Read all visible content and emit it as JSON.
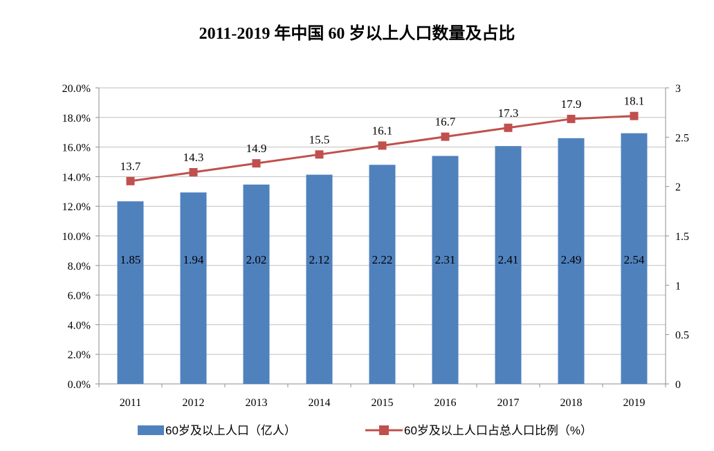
{
  "chart_data": {
    "type": "bar",
    "title": "2011-2019 年中国 60 岁以上人口数量及占比",
    "categories": [
      "2011",
      "2012",
      "2013",
      "2014",
      "2015",
      "2016",
      "2017",
      "2018",
      "2019"
    ],
    "series": [
      {
        "name": "60岁及以上人口（亿人）",
        "type": "bar",
        "axis": "right",
        "color": "#4f81bd",
        "values": [
          1.85,
          1.94,
          2.02,
          2.12,
          2.22,
          2.31,
          2.41,
          2.49,
          2.54
        ],
        "labels": [
          "1.85",
          "1.94",
          "2.02",
          "2.12",
          "2.22",
          "2.31",
          "2.41",
          "2.49",
          "2.54"
        ]
      },
      {
        "name": "60岁及以上人口占总人口比例（%）",
        "type": "line",
        "axis": "left",
        "color": "#c0504d",
        "values": [
          13.7,
          14.3,
          14.9,
          15.5,
          16.1,
          16.7,
          17.3,
          17.9,
          18.1
        ],
        "labels": [
          "13.7",
          "14.3",
          "14.9",
          "15.5",
          "16.1",
          "16.7",
          "17.3",
          "17.9",
          "18.1"
        ]
      }
    ],
    "y_left": {
      "range": [
        0,
        20
      ],
      "ticks": [
        0,
        2,
        4,
        6,
        8,
        10,
        12,
        14,
        16,
        18,
        20
      ],
      "tick_labels": [
        "0.0%",
        "2.0%",
        "4.0%",
        "6.0%",
        "8.0%",
        "10.0%",
        "12.0%",
        "14.0%",
        "16.0%",
        "18.0%",
        "20.0%"
      ]
    },
    "y_right": {
      "range": [
        0,
        3
      ],
      "ticks": [
        0,
        0.5,
        1,
        1.5,
        2,
        2.5,
        3
      ],
      "tick_labels": [
        "0",
        "0.5",
        "1",
        "1.5",
        "2",
        "2.5",
        "3"
      ]
    },
    "grid": true,
    "legend_position": "bottom"
  }
}
